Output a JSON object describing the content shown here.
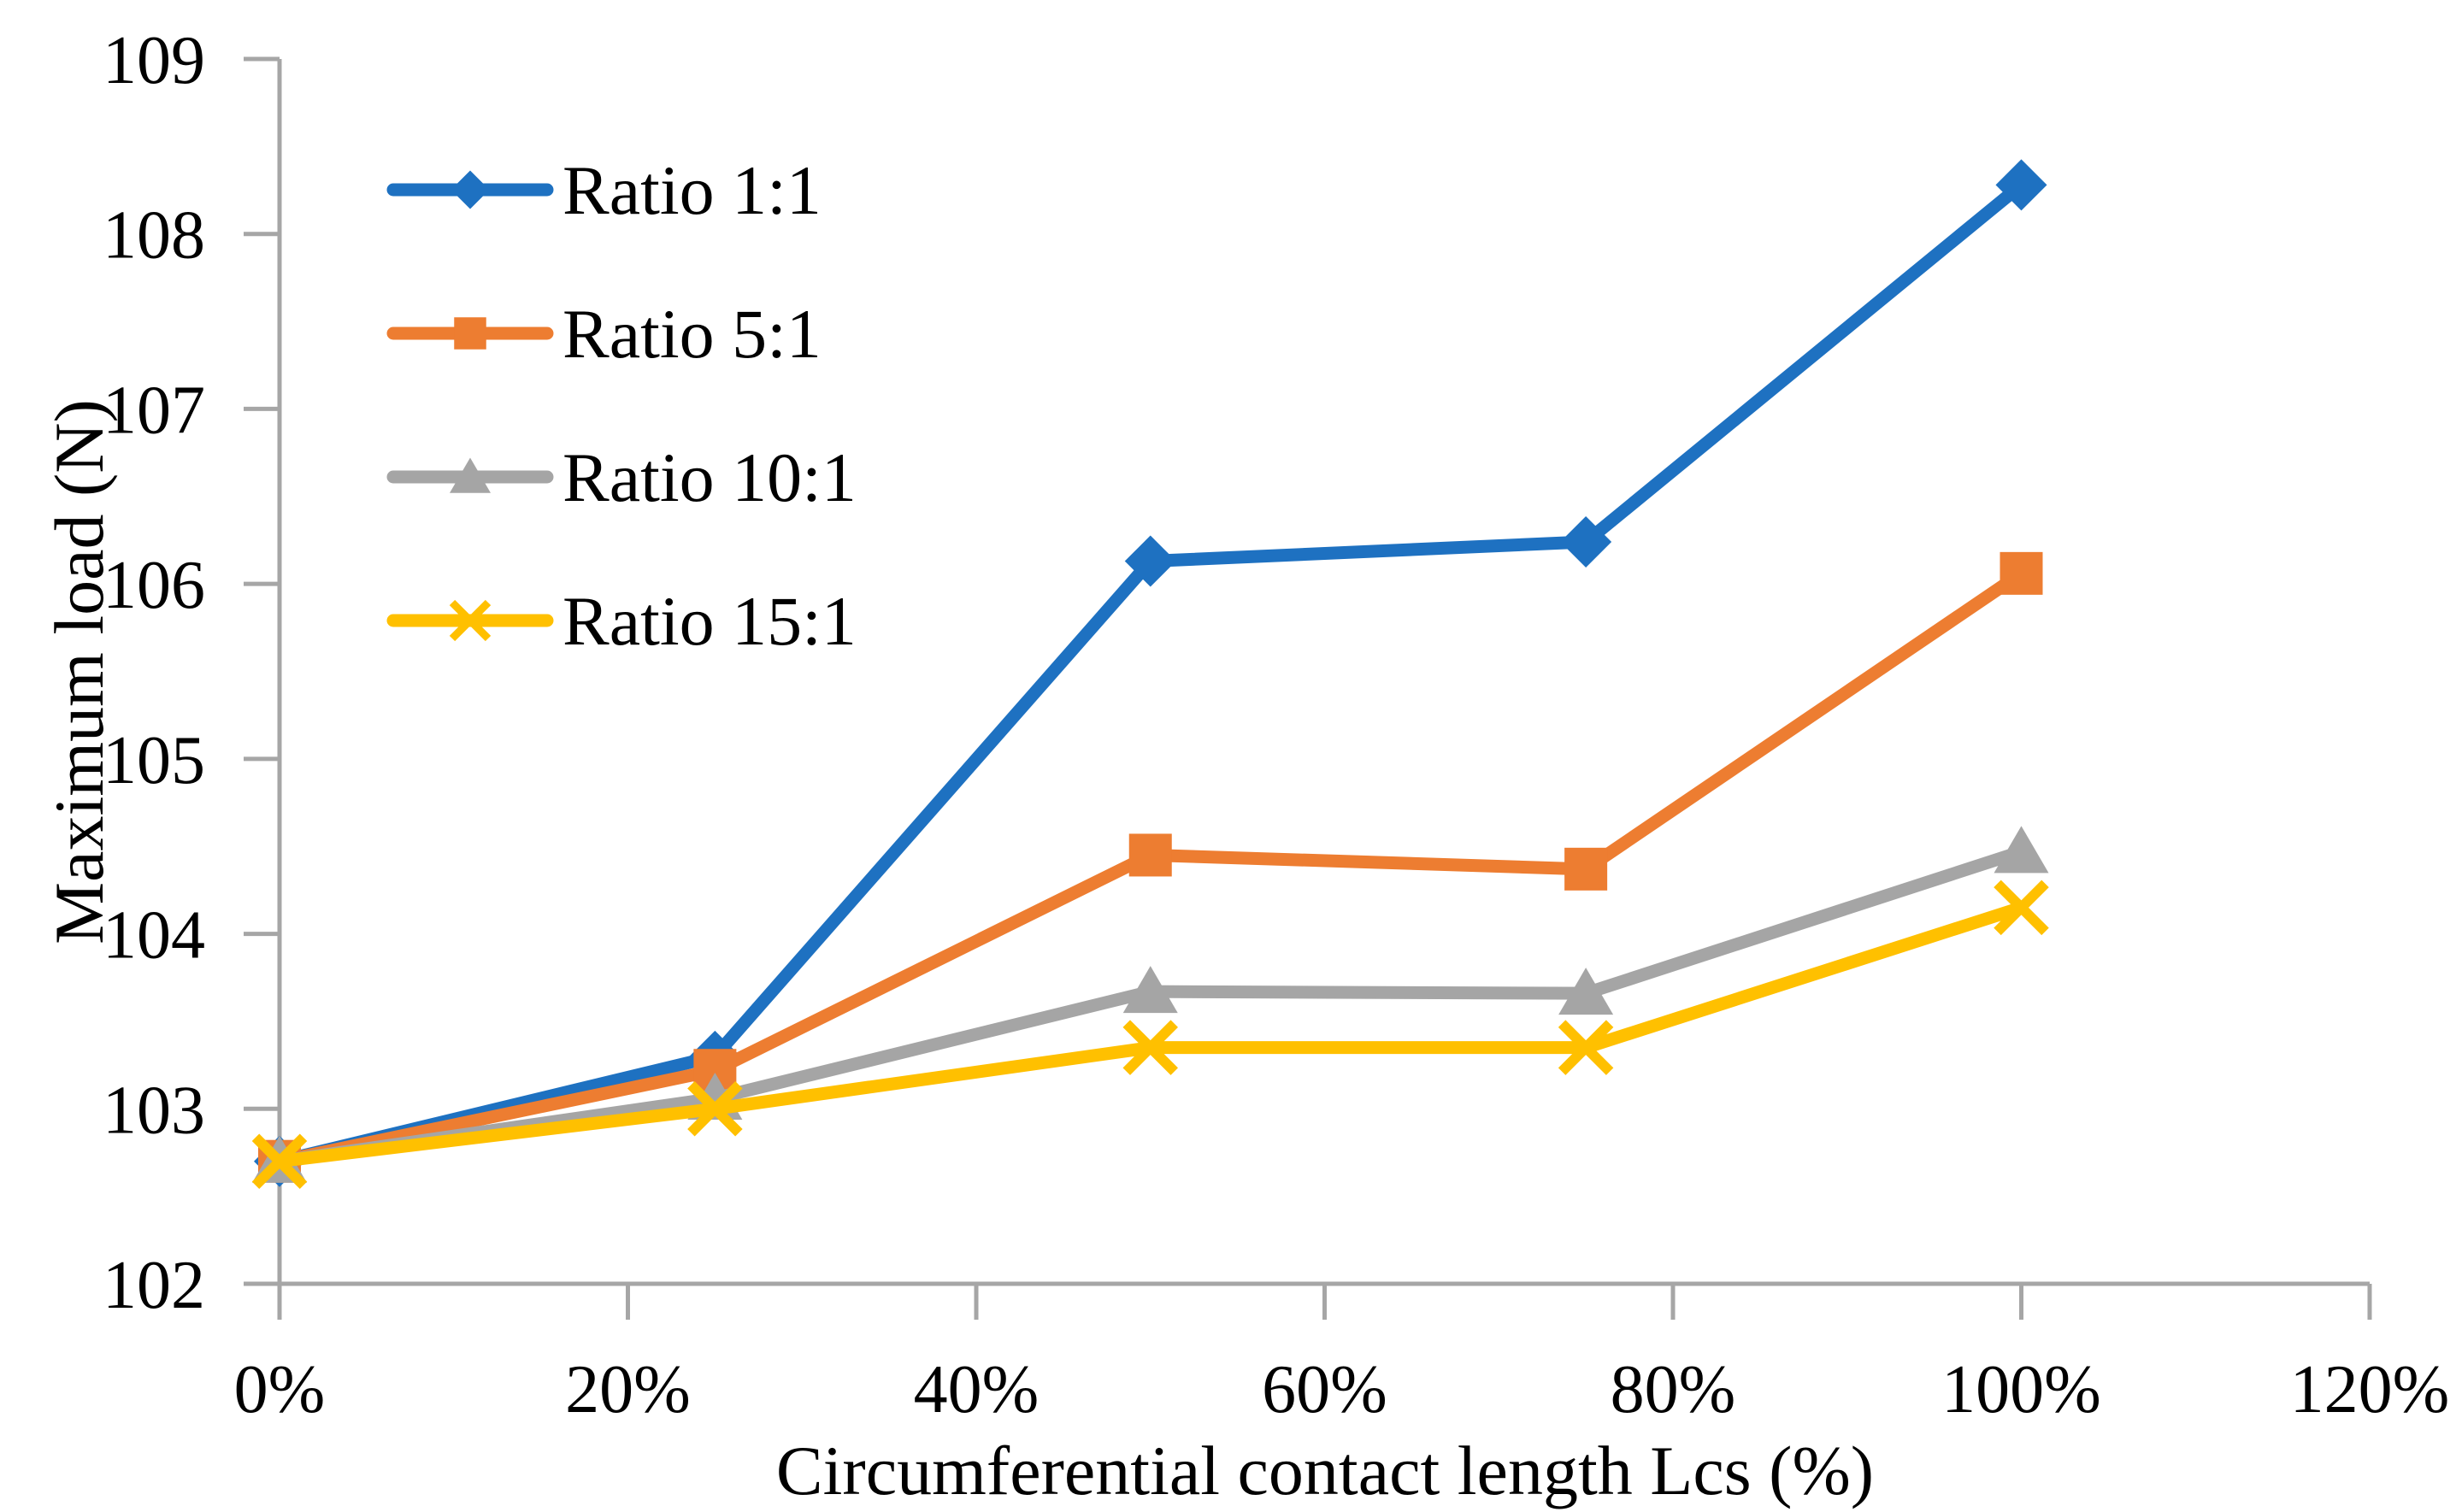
{
  "page": {
    "background": "#ffffff"
  },
  "chart_data": {
    "type": "line",
    "title": "",
    "xlabel": "Circumferential contact length Lcs (%)",
    "ylabel": "Maximum load (N)",
    "x": [
      0,
      25,
      50,
      75,
      100
    ],
    "series": [
      {
        "name": "Ratio 1:1",
        "color": "#1E71C1",
        "marker": "diamond",
        "values": [
          102.7,
          103.3,
          106.13,
          106.24,
          108.28
        ]
      },
      {
        "name": "Ratio 5:1",
        "color": "#ED7D31",
        "marker": "square",
        "values": [
          102.7,
          103.22,
          104.45,
          104.37,
          106.06
        ]
      },
      {
        "name": "Ratio 10:1",
        "color": "#A5A5A5",
        "marker": "triangle",
        "values": [
          102.7,
          103.06,
          103.67,
          103.66,
          104.47
        ]
      },
      {
        "name": "Ratio 15:1",
        "color": "#FFC000",
        "marker": "x",
        "values": [
          102.7,
          103.0,
          103.35,
          103.35,
          104.15
        ]
      }
    ],
    "xlim": [
      0,
      120
    ],
    "ylim": [
      102,
      109
    ],
    "xticks": [
      0,
      20,
      40,
      60,
      80,
      100,
      120
    ],
    "xticklabels": [
      "0%",
      "20%",
      "40%",
      "60%",
      "80%",
      "100%",
      "120%"
    ],
    "yticks": [
      102,
      103,
      104,
      105,
      106,
      107,
      108,
      109
    ],
    "yticklabels": [
      "102",
      "103",
      "104",
      "105",
      "106",
      "107",
      "108",
      "109"
    ],
    "grid": false,
    "legend_position": "upper-left-inside",
    "axis_color": "#A6A6A6",
    "text_color": "#000000"
  }
}
